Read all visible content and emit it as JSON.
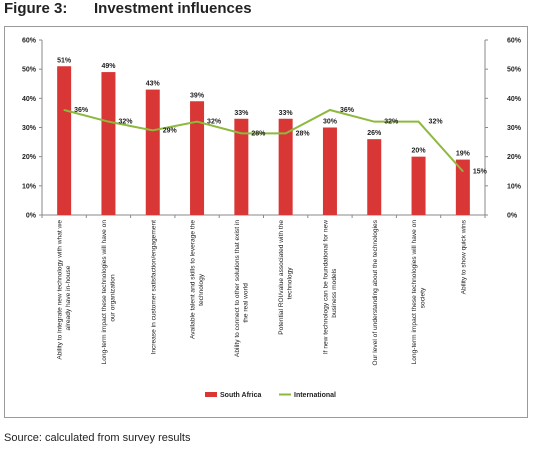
{
  "figure": {
    "number": "Figure 3:",
    "title": "Investment influences"
  },
  "source": "Source: calculated from survey results",
  "colors": {
    "south_africa": "#d93636",
    "international": "#8cb93e",
    "axis": "#8a8a8a",
    "text": "#222222"
  },
  "chart_data": {
    "type": "bar",
    "title": "",
    "xlabel": "",
    "ylabel": "",
    "ylim": [
      0,
      60
    ],
    "y_ticks": [
      "0%",
      "10%",
      "20%",
      "30%",
      "40%",
      "50%",
      "60%"
    ],
    "y2_ticks": [
      "0%",
      "10%",
      "20%",
      "30%",
      "40%",
      "50%",
      "60%"
    ],
    "grid": false,
    "legend_position": "bottom",
    "categories": [
      [
        "Ability to integrate new technology with what we",
        "already have in-house"
      ],
      [
        "Long-term impact these technologies will have on",
        "our organization"
      ],
      [
        "Increase in customer satisfaction/engagement"
      ],
      [
        "Available talent and skills to leverage the",
        "technology"
      ],
      [
        "Ability to connect to other solutions that exist in",
        "the real world"
      ],
      [
        "Potential ROI/value associated with the",
        "technology"
      ],
      [
        "If new technology can be foundational for new",
        "business models"
      ],
      [
        "Our level of understanding about the technologies"
      ],
      [
        "Long-term impact these technologies will have on",
        "society"
      ],
      [
        "Ability to show quick wins"
      ]
    ],
    "series": [
      {
        "name": "South Africa",
        "kind": "bar",
        "values": [
          51,
          49,
          43,
          39,
          33,
          33,
          30,
          26,
          20,
          19
        ],
        "labels": [
          "51%",
          "49%",
          "43%",
          "39%",
          "33%",
          "33%",
          "30%",
          "26%",
          "20%",
          "19%"
        ]
      },
      {
        "name": "International",
        "kind": "line",
        "values": [
          36,
          32,
          29,
          32,
          28,
          28,
          36,
          32,
          32,
          15
        ],
        "labels": [
          "36%",
          "32%",
          "29%",
          "32%",
          "28%",
          "28%",
          "36%",
          "32%",
          "32%",
          "15%"
        ]
      }
    ]
  }
}
